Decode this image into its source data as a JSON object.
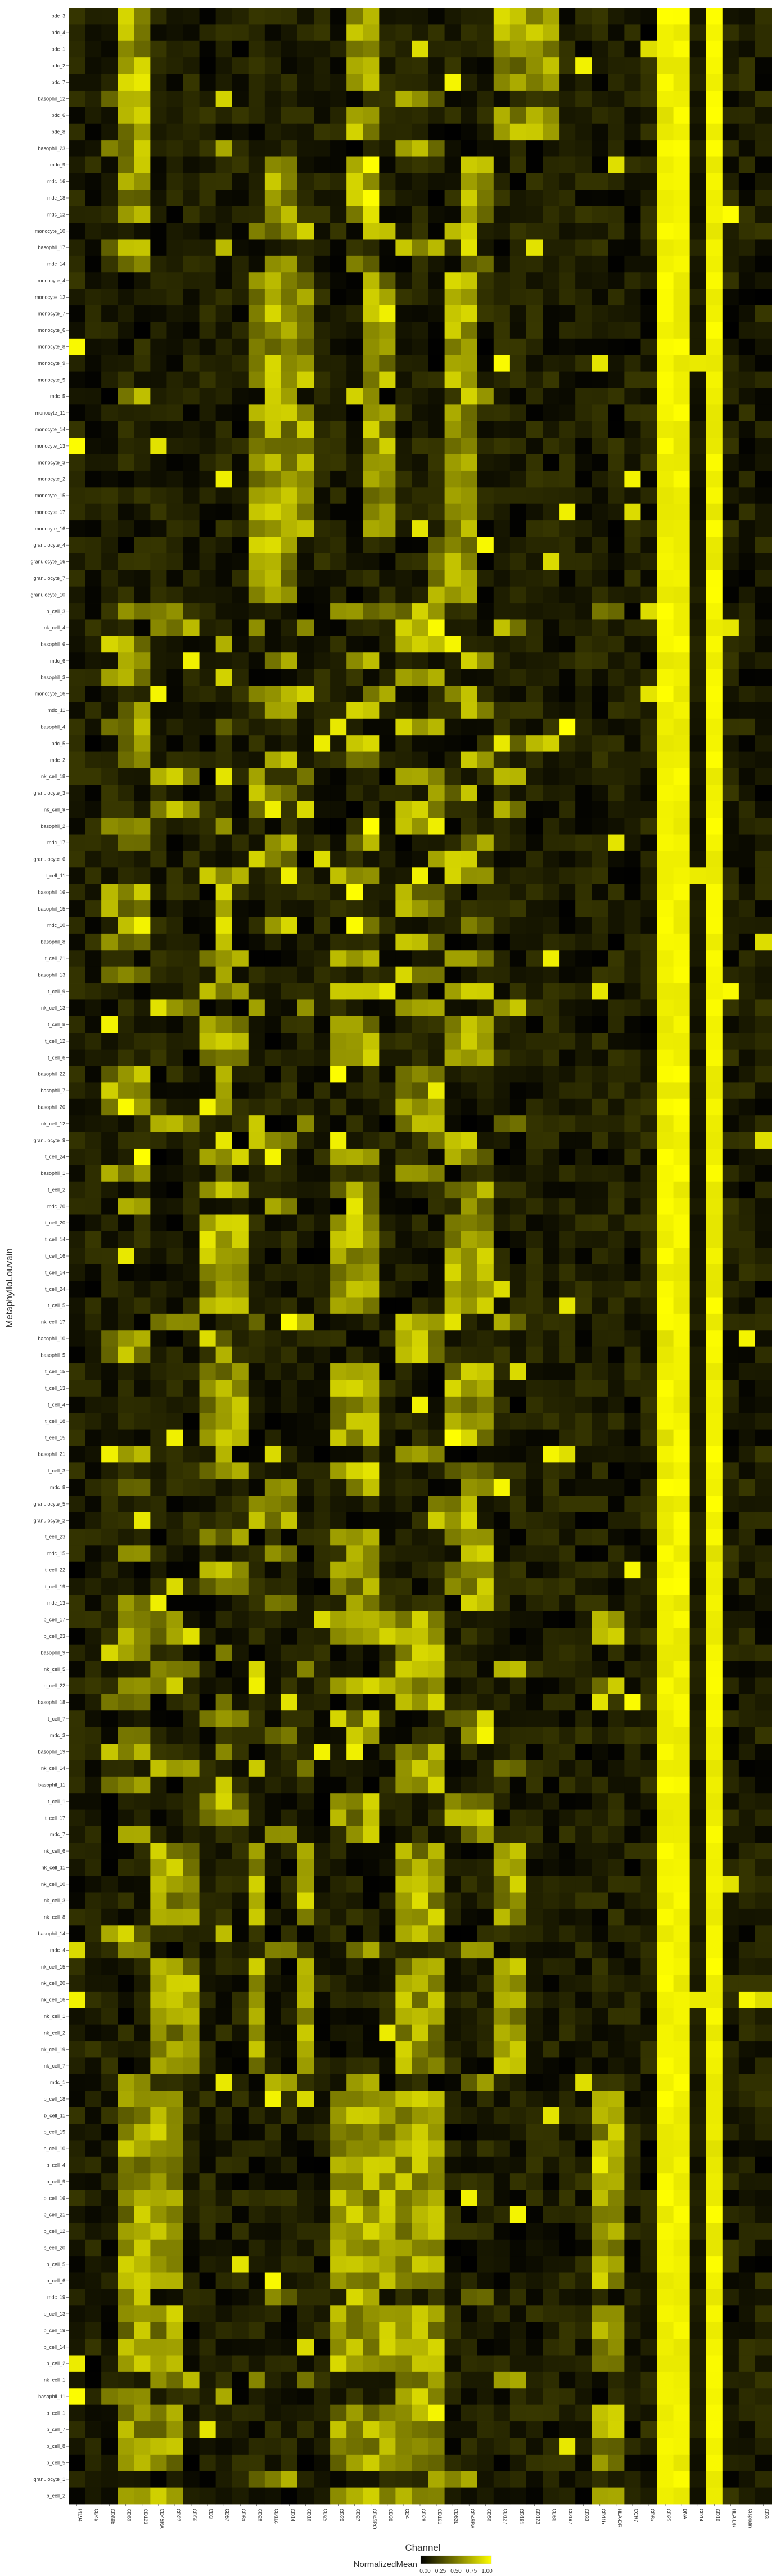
{
  "chart_data": {
    "type": "heatmap",
    "xlabel": "Channel",
    "ylabel": "MetaphylloLouvain",
    "rows": [
      "pdc_3",
      "pdc_4",
      "pdc_1",
      "pdc_2",
      "pdc_7",
      "basophil_12",
      "pdc_6",
      "pdc_8",
      "basophil_23",
      "mdc_9",
      "mdc_16",
      "mdc_18",
      "mdc_12",
      "monocyte_10",
      "basophil_17",
      "mdc_14",
      "monocyte_4",
      "monocyte_12",
      "monocyte_7",
      "monocyte_6",
      "monocyte_8",
      "monocyte_9",
      "monocyte_5",
      "mdc_5",
      "monocyte_11",
      "monocyte_14",
      "monocyte_13",
      "monocyte_3",
      "monocyte_2",
      "monocyte_15",
      "monocyte_17",
      "monocyte_16",
      "granulocyte_4",
      "granulocyte_16",
      "granulocyte_7",
      "granulocyte_10",
      "b_cell_3",
      "nk_cell_4",
      "basophil_6",
      "mdc_6",
      "basophil_3",
      "monocyte_16",
      "mdc_11",
      "basophil_4",
      "pdc_5",
      "mdc_2",
      "nk_cell_18",
      "granulocyte_3",
      "nk_cell_9",
      "basophil_2",
      "mdc_17",
      "granulocyte_6",
      "t_cell_11",
      "basophil_16",
      "basophil_15",
      "mdc_10",
      "basophil_8",
      "t_cell_21",
      "basophil_13",
      "t_cell_9",
      "nk_cell_13",
      "t_cell_8",
      "t_cell_12",
      "t_cell_6",
      "basophil_22",
      "basophil_7",
      "basophil_20",
      "nk_cell_12",
      "granulocyte_9",
      "t_cell_24",
      "basophil_1",
      "t_cell_2",
      "mdc_20",
      "t_cell_20",
      "t_cell_14",
      "t_cell_16",
      "t_cell_14",
      "t_cell_24",
      "t_cell_5",
      "nk_cell_17",
      "basophil_10",
      "basophil_5",
      "t_cell_15",
      "t_cell_13",
      "t_cell_4",
      "t_cell_18",
      "t_cell_15",
      "basophil_21",
      "t_cell_3",
      "mdc_8",
      "granulocyte_5",
      "granulocyte_2",
      "t_cell_23",
      "mdc_15",
      "t_cell_22",
      "t_cell_19",
      "mdc_13",
      "b_cell_17",
      "b_cell_23",
      "basophil_9",
      "nk_cell_5",
      "b_cell_22",
      "basophil_18",
      "t_cell_7",
      "mdc_3",
      "basophil_19",
      "nk_cell_14",
      "basophil_11",
      "t_cell_1",
      "t_cell_17",
      "mdc_7",
      "nk_cell_6",
      "nk_cell_11",
      "nk_cell_10",
      "nk_cell_3",
      "nk_cell_8",
      "basophil_14",
      "mdc_4",
      "nk_cell_15",
      "nk_cell_20",
      "nk_cell_16",
      "nk_cell_1",
      "nk_cell_2",
      "nk_cell_19",
      "nk_cell_7",
      "mdc_1",
      "b_cell_18",
      "b_cell_11",
      "b_cell_15",
      "b_cell_10",
      "b_cell_4",
      "b_cell_9",
      "b_cell_16",
      "b_cell_21",
      "b_cell_12",
      "b_cell_20",
      "b_cell_5",
      "b_cell_6",
      "mdc_19",
      "b_cell_13",
      "b_cell_19",
      "b_cell_14",
      "b_cell_2",
      "nk_cell_1",
      "basophil_11",
      "b_cell_1",
      "b_cell_7",
      "b_cell_8",
      "b_cell_5",
      "granulocyte_1",
      "b_cell_2"
    ],
    "columns": [
      "Pt194",
      "CD45",
      "CD66b",
      "CD69",
      "CD123",
      "CD45RA",
      "CD27",
      "CD56",
      "CD3",
      "CD57",
      "CD8a",
      "CD28",
      "CD11c",
      "CD14",
      "CD16",
      "CD25",
      "CD20",
      "CD27",
      "CD45RO",
      "CD38",
      "CD4",
      "CD28",
      "CD161",
      "CD62L",
      "CD45RA",
      "CD56",
      "CD127",
      "CD161",
      "CD123",
      "CD86",
      "CD197",
      "CD33",
      "CD11b",
      "HLA-DR",
      "CCR7",
      "CD8a",
      "CD25",
      "DNA",
      "CD14",
      "CD16",
      "HLA-DR",
      "Cisplatin",
      "CD3"
    ],
    "values_scale": [
      0,
      1
    ],
    "colorbar": {
      "title": "NormalizedMean",
      "ticks": [
        "0.00",
        "0.25",
        "0.50",
        "0.75",
        "1.00"
      ],
      "low_color": "#000000",
      "high_color": "#ffff00"
    },
    "grid": false,
    "legend_position": "bottom"
  }
}
